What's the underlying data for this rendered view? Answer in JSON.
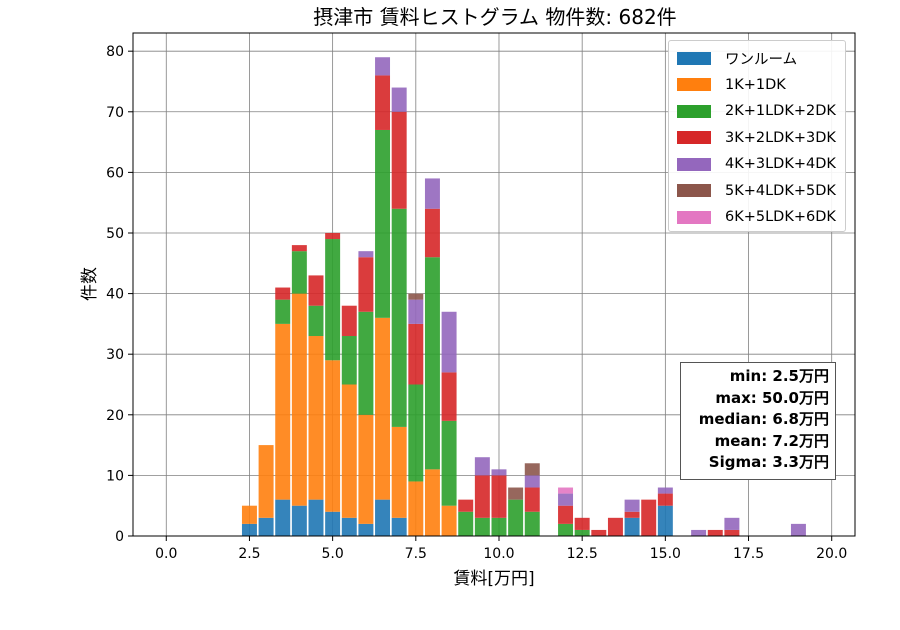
{
  "chart_data": {
    "type": "bar",
    "stacked": true,
    "title": "摂津市 賃料ヒストグラム  物件数: 682件",
    "xlabel": "賃料[万円]",
    "ylabel": "件数",
    "xlim": [
      -1.0,
      20.7
    ],
    "ylim": [
      0,
      83
    ],
    "xticks": [
      "0.0",
      "2.5",
      "5.0",
      "7.5",
      "10.0",
      "12.5",
      "15.0",
      "17.5",
      "20.0"
    ],
    "xtick_values": [
      0,
      2.5,
      5,
      7.5,
      10,
      12.5,
      15,
      17.5,
      20
    ],
    "yticks": [
      "0",
      "10",
      "20",
      "30",
      "40",
      "50",
      "60",
      "70",
      "80"
    ],
    "ytick_values": [
      0,
      10,
      20,
      30,
      40,
      50,
      60,
      70,
      80
    ],
    "grid": true,
    "legend_position": "top-right",
    "bin_width": 0.5,
    "x": [
      2.5,
      3.0,
      3.5,
      4.0,
      4.5,
      5.0,
      5.5,
      6.0,
      6.5,
      7.0,
      7.5,
      8.0,
      8.5,
      9.0,
      9.5,
      10.0,
      10.5,
      11.0,
      11.5,
      12.0,
      12.5,
      13.0,
      13.5,
      14.0,
      14.5,
      15.0,
      15.5,
      16.0,
      16.5,
      17.0,
      17.5,
      18.0,
      18.5,
      19.0,
      19.5
    ],
    "series": [
      {
        "name": "ワンルーム",
        "color": "#1f77b4",
        "values": [
          2,
          3,
          6,
          5,
          6,
          4,
          3,
          2,
          6,
          3,
          0,
          0,
          0,
          0,
          0,
          0,
          0,
          0,
          0,
          0,
          0,
          0,
          0,
          3,
          0,
          5,
          0,
          0,
          0,
          0,
          0,
          0,
          0,
          0,
          0
        ]
      },
      {
        "name": "1K+1DK",
        "color": "#ff7f0e",
        "values": [
          3,
          12,
          29,
          35,
          27,
          25,
          22,
          18,
          30,
          15,
          9,
          11,
          5,
          0,
          0,
          0,
          0,
          0,
          0,
          0,
          0,
          0,
          0,
          0,
          0,
          0,
          0,
          0,
          0,
          0,
          0,
          0,
          0,
          0,
          0
        ]
      },
      {
        "name": "2K+1LDK+2DK",
        "color": "#2ca02c",
        "values": [
          0,
          0,
          4,
          7,
          5,
          20,
          8,
          17,
          31,
          36,
          16,
          35,
          14,
          4,
          3,
          3,
          6,
          4,
          0,
          2,
          1,
          0,
          0,
          0,
          0,
          0,
          0,
          0,
          0,
          0,
          0,
          0,
          0,
          0,
          0
        ]
      },
      {
        "name": "3K+2LDK+3DK",
        "color": "#d62728",
        "values": [
          0,
          0,
          2,
          1,
          5,
          1,
          5,
          9,
          9,
          16,
          10,
          8,
          8,
          2,
          7,
          7,
          0,
          4,
          0,
          3,
          2,
          1,
          3,
          1,
          6,
          2,
          0,
          0,
          1,
          1,
          0,
          0,
          0,
          0,
          0
        ]
      },
      {
        "name": "4K+3LDK+4DK",
        "color": "#9467bd",
        "values": [
          0,
          0,
          0,
          0,
          0,
          0,
          0,
          1,
          3,
          4,
          4,
          5,
          10,
          0,
          3,
          1,
          0,
          2,
          0,
          2,
          0,
          0,
          0,
          2,
          0,
          1,
          0,
          1,
          0,
          2,
          0,
          0,
          0,
          2,
          0
        ]
      },
      {
        "name": "5K+4LDK+5DK",
        "color": "#8c564b",
        "values": [
          0,
          0,
          0,
          0,
          0,
          0,
          0,
          0,
          0,
          0,
          1,
          0,
          0,
          0,
          0,
          0,
          2,
          2,
          0,
          0,
          0,
          0,
          0,
          0,
          0,
          0,
          0,
          0,
          0,
          0,
          0,
          0,
          0,
          0,
          0
        ]
      },
      {
        "name": "6K+5LDK+6DK",
        "color": "#e377c2",
        "values": [
          0,
          0,
          0,
          0,
          0,
          0,
          0,
          0,
          0,
          0,
          0,
          0,
          0,
          0,
          0,
          0,
          0,
          0,
          0,
          1,
          0,
          0,
          0,
          0,
          0,
          0,
          0,
          0,
          0,
          0,
          0,
          0,
          0,
          0,
          0
        ]
      }
    ],
    "annotation": {
      "position": "right",
      "lines": [
        "min: 2.5万円",
        "max: 50.0万円",
        "median: 6.8万円",
        "mean: 7.2万円",
        "Sigma: 3.3万円"
      ]
    }
  }
}
